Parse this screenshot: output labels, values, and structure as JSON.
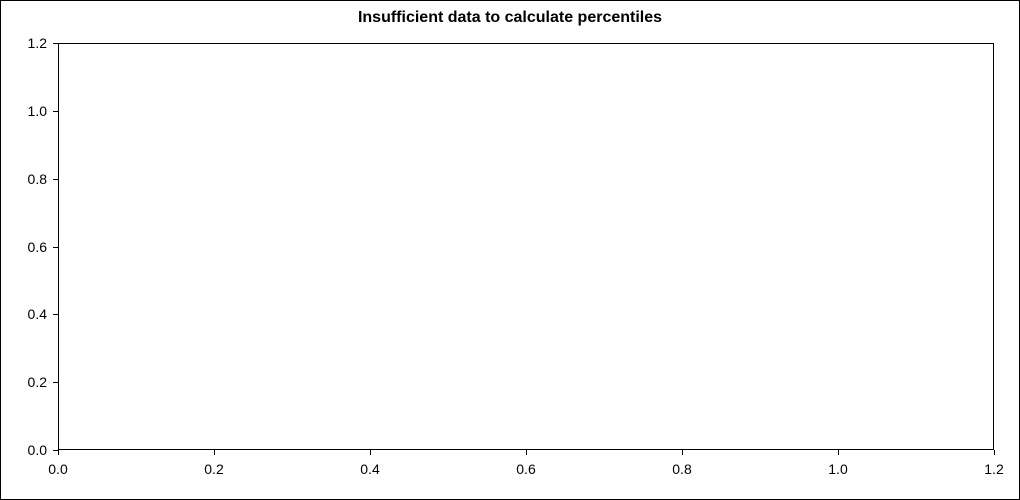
{
  "chart_data": {
    "type": "scatter",
    "title": "Insufficient data to calculate percentiles",
    "x": [],
    "y": [],
    "series": [],
    "xlabel": "",
    "ylabel": "",
    "xlim": [
      0.0,
      1.2
    ],
    "ylim": [
      0.0,
      1.2
    ],
    "x_ticks": [
      "0.0",
      "0.2",
      "0.4",
      "0.6",
      "0.8",
      "1.0",
      "1.2"
    ],
    "y_ticks": [
      "0.0",
      "0.2",
      "0.4",
      "0.6",
      "0.8",
      "1.0",
      "1.2"
    ],
    "grid": false,
    "legend": "none",
    "note": "empty plot area, no data points rendered"
  },
  "colors": {
    "background": "#ffffff",
    "axis": "#000000",
    "title_text": "#000000",
    "tick_text": "#000000"
  }
}
